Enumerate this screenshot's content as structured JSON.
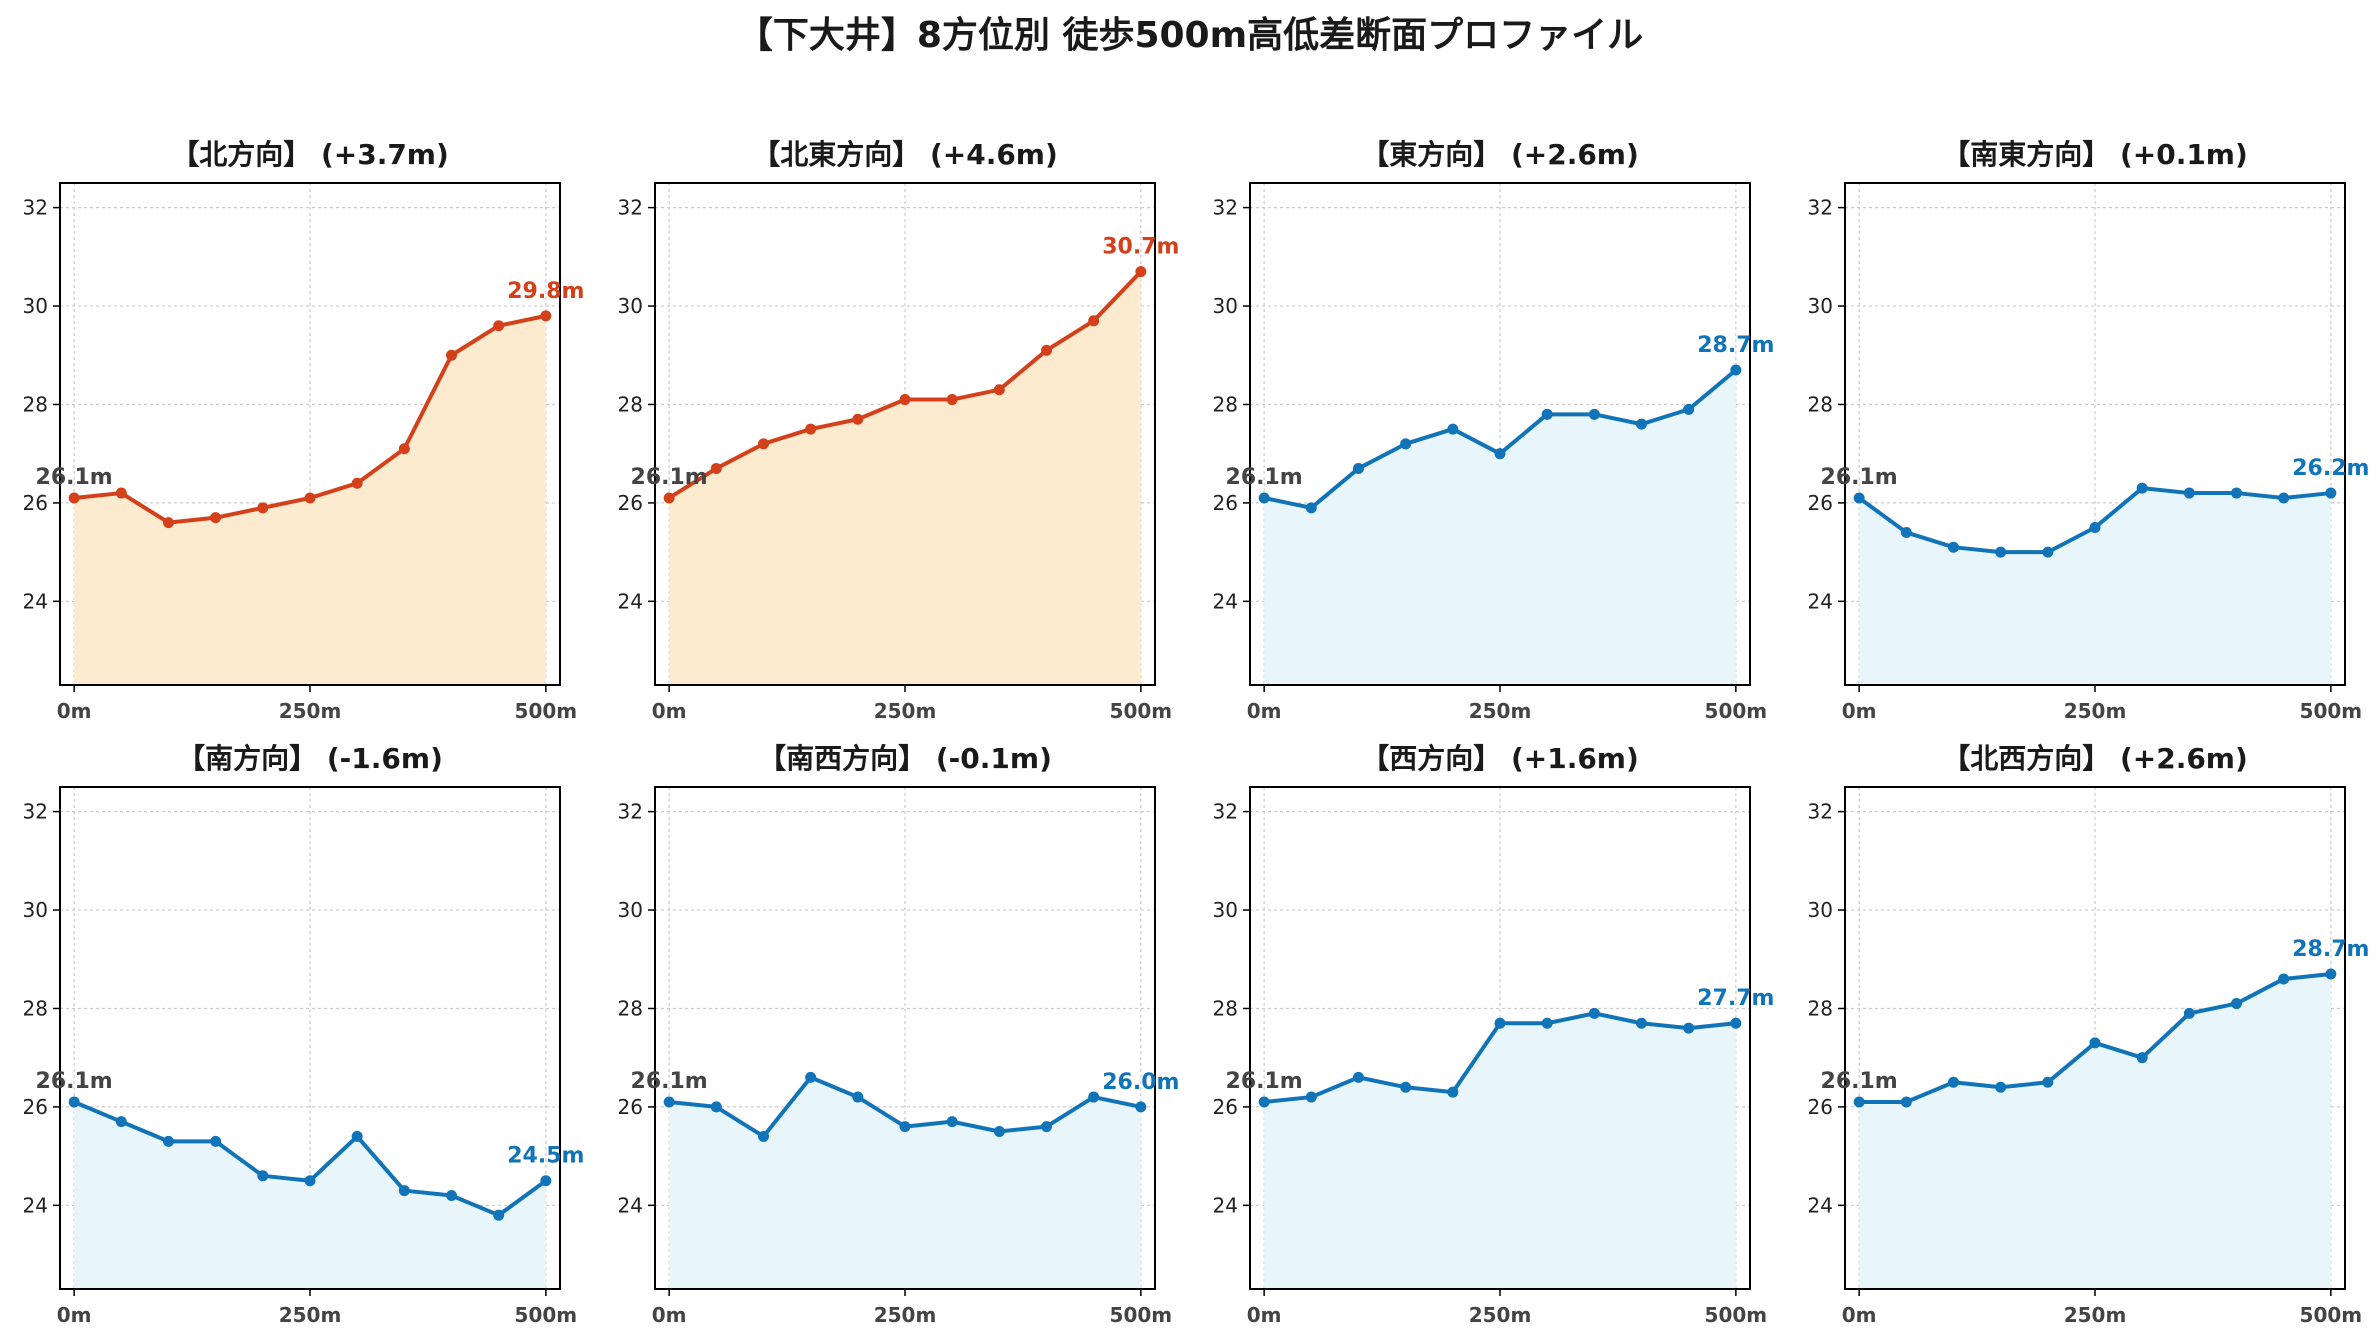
{
  "title": "【下大井】8方位別 徒歩500m高低差断面プロファイル",
  "colors": {
    "up_line": "#d4401a",
    "up_fill": "#fdebd0",
    "flat_line": "#1274b8",
    "flat_fill": "#e8f5fb",
    "grid": "#cccccc",
    "start_label": "#444444"
  },
  "chart_data": [
    {
      "type": "area",
      "title": "【北方向】 (+3.7m)",
      "start_label": "26.1m",
      "end_label": "29.8m",
      "trend": "up",
      "x": [
        0,
        50,
        100,
        150,
        200,
        250,
        300,
        350,
        400,
        450,
        500
      ],
      "values": [
        26.1,
        26.2,
        25.6,
        25.7,
        25.9,
        26.1,
        26.4,
        27.1,
        29.0,
        29.6,
        29.8
      ],
      "xticks": [
        "0m",
        "250m",
        "500m"
      ],
      "yticks": [
        "24",
        "26",
        "28",
        "30",
        "32"
      ],
      "ylim": [
        22.3,
        32.5
      ],
      "grid": true
    },
    {
      "type": "area",
      "title": "【北東方向】 (+4.6m)",
      "start_label": "26.1m",
      "end_label": "30.7m",
      "trend": "up",
      "x": [
        0,
        50,
        100,
        150,
        200,
        250,
        300,
        350,
        400,
        450,
        500
      ],
      "values": [
        26.1,
        26.7,
        27.2,
        27.5,
        27.7,
        28.1,
        28.1,
        28.3,
        29.1,
        29.7,
        30.7
      ],
      "xticks": [
        "0m",
        "250m",
        "500m"
      ],
      "yticks": [
        "24",
        "26",
        "28",
        "30",
        "32"
      ],
      "ylim": [
        22.3,
        32.5
      ],
      "grid": true
    },
    {
      "type": "area",
      "title": "【東方向】 (+2.6m)",
      "start_label": "26.1m",
      "end_label": "28.7m",
      "trend": "flat",
      "x": [
        0,
        50,
        100,
        150,
        200,
        250,
        300,
        350,
        400,
        450,
        500
      ],
      "values": [
        26.1,
        25.9,
        26.7,
        27.2,
        27.5,
        27.0,
        27.8,
        27.8,
        27.6,
        27.9,
        28.7
      ],
      "xticks": [
        "0m",
        "250m",
        "500m"
      ],
      "yticks": [
        "24",
        "26",
        "28",
        "30",
        "32"
      ],
      "ylim": [
        22.3,
        32.5
      ],
      "grid": true
    },
    {
      "type": "area",
      "title": "【南東方向】 (+0.1m)",
      "start_label": "26.1m",
      "end_label": "26.2m",
      "trend": "flat",
      "x": [
        0,
        50,
        100,
        150,
        200,
        250,
        300,
        350,
        400,
        450,
        500
      ],
      "values": [
        26.1,
        25.4,
        25.1,
        25.0,
        25.0,
        25.5,
        26.3,
        26.2,
        26.2,
        26.1,
        26.2
      ],
      "xticks": [
        "0m",
        "250m",
        "500m"
      ],
      "yticks": [
        "24",
        "26",
        "28",
        "30",
        "32"
      ],
      "ylim": [
        22.3,
        32.5
      ],
      "grid": true
    },
    {
      "type": "area",
      "title": "【南方向】 (-1.6m)",
      "start_label": "26.1m",
      "end_label": "24.5m",
      "trend": "flat",
      "x": [
        0,
        50,
        100,
        150,
        200,
        250,
        300,
        350,
        400,
        450,
        500
      ],
      "values": [
        26.1,
        25.7,
        25.3,
        25.3,
        24.6,
        24.5,
        25.4,
        24.3,
        24.2,
        23.8,
        24.5
      ],
      "xticks": [
        "0m",
        "250m",
        "500m"
      ],
      "yticks": [
        "24",
        "26",
        "28",
        "30",
        "32"
      ],
      "ylim": [
        22.3,
        32.5
      ],
      "grid": true
    },
    {
      "type": "area",
      "title": "【南西方向】 (-0.1m)",
      "start_label": "26.1m",
      "end_label": "26.0m",
      "trend": "flat",
      "x": [
        0,
        50,
        100,
        150,
        200,
        250,
        300,
        350,
        400,
        450,
        500
      ],
      "values": [
        26.1,
        26.0,
        25.4,
        26.6,
        26.2,
        25.6,
        25.7,
        25.5,
        25.6,
        26.2,
        26.0
      ],
      "xticks": [
        "0m",
        "250m",
        "500m"
      ],
      "yticks": [
        "24",
        "26",
        "28",
        "30",
        "32"
      ],
      "ylim": [
        22.3,
        32.5
      ],
      "grid": true
    },
    {
      "type": "area",
      "title": "【西方向】 (+1.6m)",
      "start_label": "26.1m",
      "end_label": "27.7m",
      "trend": "flat",
      "x": [
        0,
        50,
        100,
        150,
        200,
        250,
        300,
        350,
        400,
        450,
        500
      ],
      "values": [
        26.1,
        26.2,
        26.6,
        26.4,
        26.3,
        27.7,
        27.7,
        27.9,
        27.7,
        27.6,
        27.7
      ],
      "xticks": [
        "0m",
        "250m",
        "500m"
      ],
      "yticks": [
        "24",
        "26",
        "28",
        "30",
        "32"
      ],
      "ylim": [
        22.3,
        32.5
      ],
      "grid": true
    },
    {
      "type": "area",
      "title": "【北西方向】 (+2.6m)",
      "start_label": "26.1m",
      "end_label": "28.7m",
      "trend": "flat",
      "x": [
        0,
        50,
        100,
        150,
        200,
        250,
        300,
        350,
        400,
        450,
        500
      ],
      "values": [
        26.1,
        26.1,
        26.5,
        26.4,
        26.5,
        27.3,
        27.0,
        27.9,
        28.1,
        28.6,
        28.7
      ],
      "xticks": [
        "0m",
        "250m",
        "500m"
      ],
      "yticks": [
        "24",
        "26",
        "28",
        "30",
        "32"
      ],
      "ylim": [
        22.3,
        32.5
      ],
      "grid": true
    }
  ]
}
